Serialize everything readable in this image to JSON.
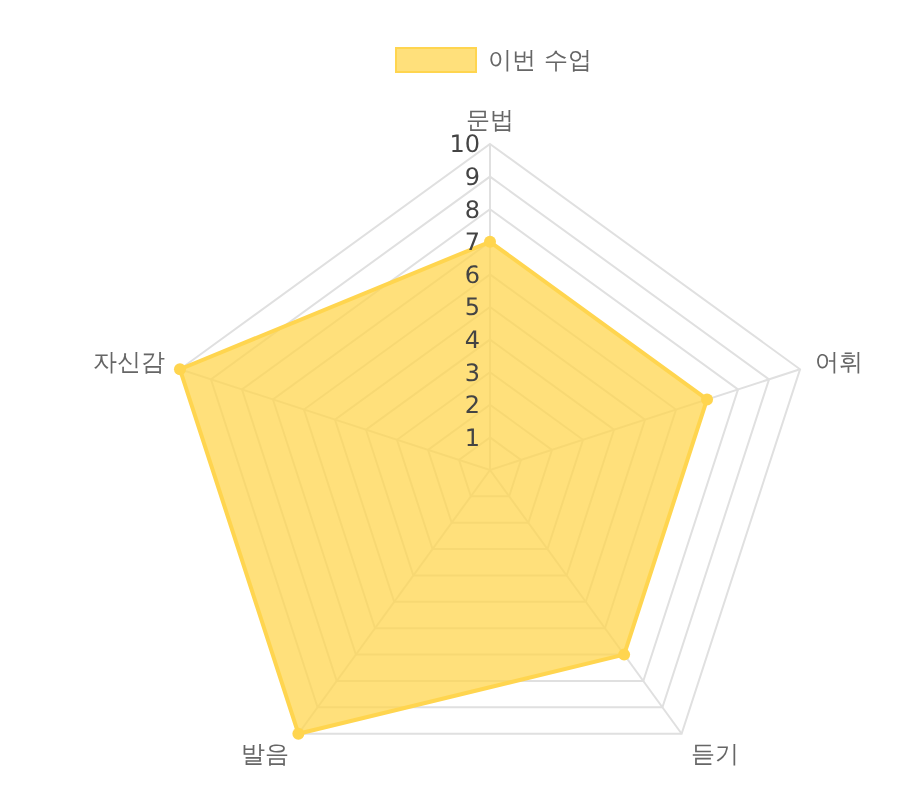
{
  "chart_data": {
    "type": "radar",
    "categories": [
      "문법",
      "어휘",
      "듣기",
      "발음",
      "자신감"
    ],
    "series": [
      {
        "name": "이번 수업",
        "color": "#ffd54f",
        "values": [
          7,
          7,
          7,
          10,
          10
        ]
      }
    ],
    "ylim": [
      0,
      10
    ],
    "yticks": [
      1,
      2,
      3,
      4,
      5,
      6,
      7,
      8,
      9,
      10
    ],
    "legend": "top",
    "grid": true,
    "marker": "circle"
  }
}
